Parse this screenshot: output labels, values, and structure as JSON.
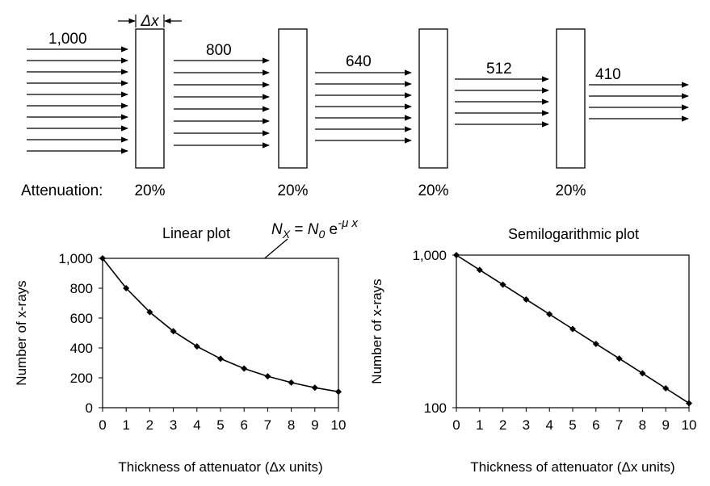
{
  "diagram": {
    "delta_label": "Δx",
    "attenuation_label": "Attenuation:",
    "beams": [
      {
        "count": "1,000",
        "rays": 10
      },
      {
        "count": "800",
        "rays": 8
      },
      {
        "count": "640",
        "rays": 7
      },
      {
        "count": "512",
        "rays": 5
      },
      {
        "count": "410",
        "rays": 4
      }
    ],
    "slabs": [
      {
        "attenuation": "20%"
      },
      {
        "attenuation": "20%"
      },
      {
        "attenuation": "20%"
      },
      {
        "attenuation": "20%"
      }
    ]
  },
  "formula": {
    "lhs": "N",
    "lhs_sub": "X",
    "eq": " = ",
    "n0": "N",
    "n0_sub": "0",
    "e": " e",
    "exp": "-μ x"
  },
  "chart_data": [
    {
      "type": "line",
      "title": "Linear plot",
      "xlabel": "Thickness of attenuator (Δx units)",
      "ylabel": "Number of x-rays",
      "x": [
        0,
        1,
        2,
        3,
        4,
        5,
        6,
        7,
        8,
        9,
        10
      ],
      "y": [
        1000,
        800,
        640,
        512,
        410,
        328,
        262,
        210,
        168,
        134,
        107
      ],
      "xlim": [
        0,
        10
      ],
      "ylim": [
        0,
        1000
      ],
      "x_ticks": [
        "0",
        "1",
        "2",
        "3",
        "4",
        "5",
        "6",
        "7",
        "8",
        "9",
        "10"
      ],
      "y_ticks": [
        {
          "value": 0,
          "label": "0"
        },
        {
          "value": 200,
          "label": "200"
        },
        {
          "value": 400,
          "label": "400"
        },
        {
          "value": 600,
          "label": "600"
        },
        {
          "value": 800,
          "label": "800"
        },
        {
          "value": 1000,
          "label": "1,000"
        }
      ],
      "y_scale": "linear",
      "grid": false
    },
    {
      "type": "line",
      "title": "Semilogarithmic plot",
      "xlabel": "Thickness of attenuator (Δx units)",
      "ylabel": "Number of x-rays",
      "x": [
        0,
        1,
        2,
        3,
        4,
        5,
        6,
        7,
        8,
        9,
        10
      ],
      "y": [
        1000,
        800,
        640,
        512,
        410,
        328,
        262,
        210,
        168,
        134,
        107
      ],
      "xlim": [
        0,
        10
      ],
      "ylim": [
        100,
        1000
      ],
      "x_ticks": [
        "0",
        "1",
        "2",
        "3",
        "4",
        "5",
        "6",
        "7",
        "8",
        "9",
        "10"
      ],
      "y_ticks": [
        {
          "value": 100,
          "label": "100"
        },
        {
          "value": 1000,
          "label": "1,000"
        }
      ],
      "y_scale": "log",
      "grid": false
    }
  ]
}
